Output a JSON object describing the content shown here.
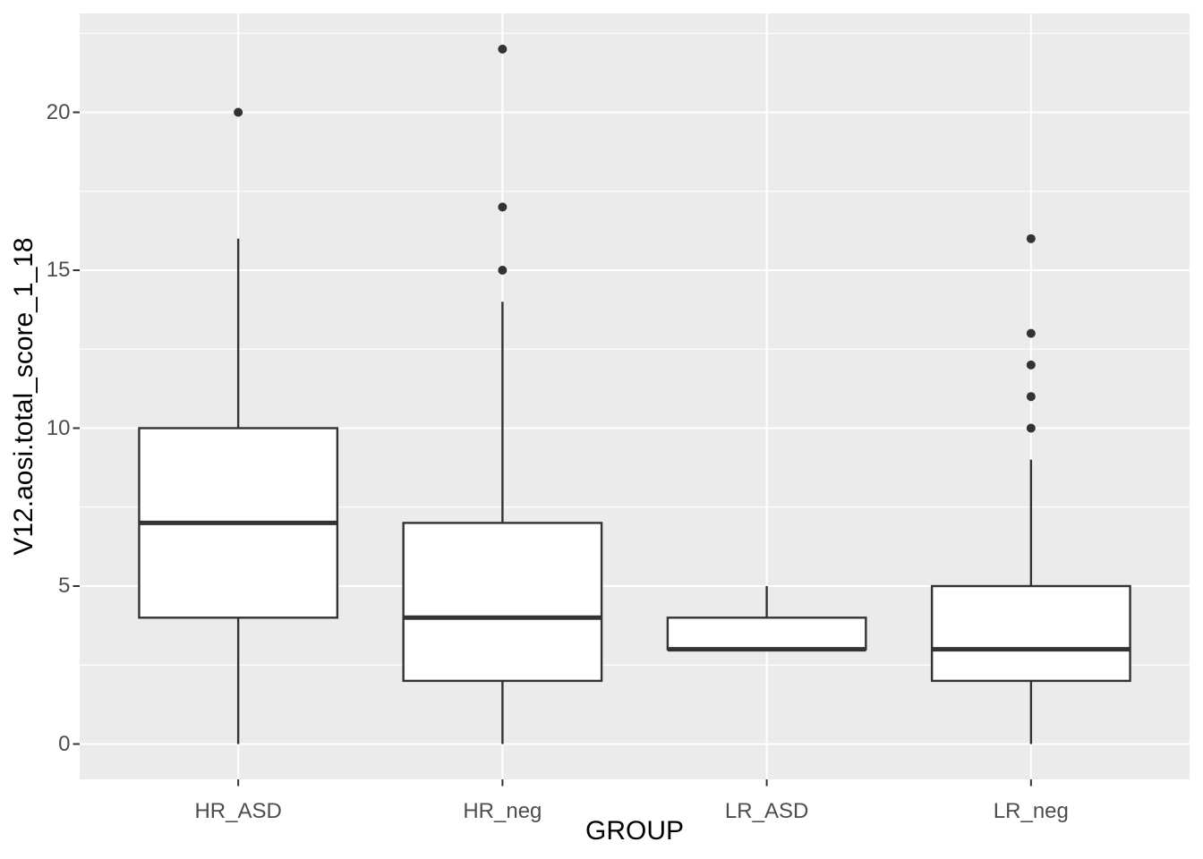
{
  "chart_data": {
    "type": "boxplot",
    "title": "",
    "xlabel": "GROUP",
    "ylabel": "V12.aosi.total_score_1_18",
    "categories": [
      "HR_ASD",
      "HR_neg",
      "LR_ASD",
      "LR_neg"
    ],
    "series": [
      {
        "category": "HR_ASD",
        "whisker_low": 0,
        "q1": 4,
        "median": 7,
        "q3": 10,
        "whisker_high": 16,
        "outliers": [
          20
        ]
      },
      {
        "category": "HR_neg",
        "whisker_low": 0,
        "q1": 2,
        "median": 4,
        "q3": 7,
        "whisker_high": 14,
        "outliers": [
          15,
          17,
          22
        ]
      },
      {
        "category": "LR_ASD",
        "whisker_low": 3,
        "q1": 3,
        "median": 3,
        "q3": 4,
        "whisker_high": 5,
        "outliers": []
      },
      {
        "category": "LR_neg",
        "whisker_low": 0,
        "q1": 2,
        "median": 3,
        "q3": 5,
        "whisker_high": 9,
        "outliers": [
          10,
          11,
          12,
          13,
          16
        ]
      }
    ],
    "y_major_ticks": [
      0,
      5,
      10,
      15,
      20
    ],
    "y_minor_gridlines": [
      2.5,
      7.5,
      12.5,
      17.5,
      22.5
    ],
    "ylim": [
      -1.1,
      23.1
    ],
    "grid": "major-and-minor",
    "legend_position": "none",
    "colors": {
      "panel_background": "#EBEBEB",
      "gridline": "#FFFFFF",
      "box_border": "#333333",
      "box_fill": "#FFFFFF",
      "median_line": "#333333",
      "whisker": "#333333",
      "outlier_point": "#333333",
      "tick_mark": "#333333",
      "tick_label": "#4D4D4D",
      "axis_title": "#000000"
    }
  }
}
